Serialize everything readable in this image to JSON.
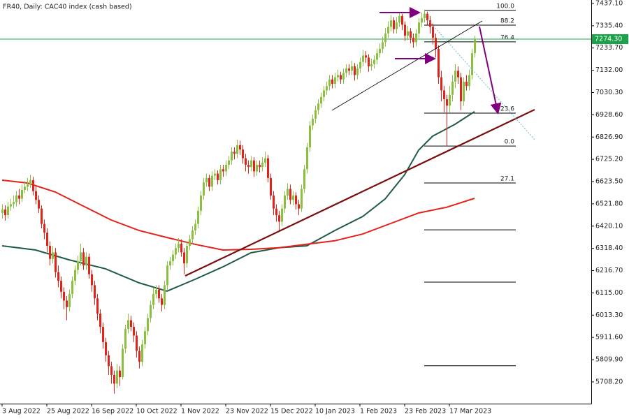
{
  "chart_data": {
    "type": "candlestick",
    "title": "FR40, Daily:  CAC40 index (cash based)",
    "up_color": "#8bbf3f",
    "down_color": "#e2231a",
    "xlim": [
      -0.75,
      210.75
    ],
    "ylim": [
      5609,
      7453
    ],
    "yticks": [
      {
        "value": 7437.1,
        "label": "7437.10"
      },
      {
        "value": 7335.4,
        "label": "7335.40"
      },
      {
        "value": 7233.7,
        "label": "7233.70"
      },
      {
        "value": 7132.0,
        "label": "7132.00"
      },
      {
        "value": 7030.3,
        "label": "7030.30"
      },
      {
        "value": 6928.6,
        "label": "6928.60"
      },
      {
        "value": 6826.9,
        "label": "6826.90"
      },
      {
        "value": 6725.2,
        "label": "6725.20"
      },
      {
        "value": 6623.5,
        "label": "6623.50"
      },
      {
        "value": 6521.8,
        "label": "6521.80"
      },
      {
        "value": 6420.1,
        "label": "6420.10"
      },
      {
        "value": 6318.4,
        "label": "6318.40"
      },
      {
        "value": 6216.7,
        "label": "6216.70"
      },
      {
        "value": 6115.0,
        "label": "6115.00"
      },
      {
        "value": 6013.3,
        "label": "6013.30"
      },
      {
        "value": 5911.6,
        "label": "5911.60"
      },
      {
        "value": 5809.9,
        "label": "5809.90"
      },
      {
        "value": 5708.2,
        "label": "5708.20"
      }
    ],
    "xticks": [
      {
        "value": 0,
        "label": "3 Aug 2022"
      },
      {
        "value": 16,
        "label": "25 Aug 2022"
      },
      {
        "value": 32,
        "label": "16 Sep 2022"
      },
      {
        "value": 48,
        "label": "10 Oct 2022"
      },
      {
        "value": 64,
        "label": "1 Nov 2022"
      },
      {
        "value": 80,
        "label": "23 Nov 2022"
      },
      {
        "value": 96,
        "label": "15 Dec 2022"
      },
      {
        "value": 112,
        "label": "10 Jan 2023"
      },
      {
        "value": 128,
        "label": "1 Feb 2023"
      },
      {
        "value": 144,
        "label": "23 Feb 2023"
      },
      {
        "value": 160,
        "label": "17 Mar 2023"
      }
    ],
    "last_price": {
      "value": 7274.3,
      "label": "7274.30",
      "color": "#1aa34a"
    },
    "candles": [
      [
        6480,
        6520,
        6455,
        6496
      ],
      [
        6496,
        6515,
        6445,
        6470
      ],
      [
        6470,
        6530,
        6455,
        6510
      ],
      [
        6510,
        6545,
        6490,
        6520
      ],
      [
        6520,
        6560,
        6500,
        6530
      ],
      [
        6530,
        6580,
        6510,
        6560
      ],
      [
        6560,
        6590,
        6520,
        6545
      ],
      [
        6545,
        6610,
        6530,
        6585
      ],
      [
        6585,
        6625,
        6570,
        6600
      ],
      [
        6600,
        6640,
        6580,
        6610
      ],
      [
        6610,
        6655,
        6595,
        6630
      ],
      [
        6630,
        6645,
        6560,
        6580
      ],
      [
        6580,
        6600,
        6520,
        6540
      ],
      [
        6540,
        6560,
        6480,
        6500
      ],
      [
        6500,
        6515,
        6410,
        6430
      ],
      [
        6430,
        6450,
        6360,
        6390
      ],
      [
        6390,
        6410,
        6300,
        6330
      ],
      [
        6330,
        6350,
        6240,
        6270
      ],
      [
        6270,
        6330,
        6250,
        6300
      ],
      [
        6300,
        6320,
        6185,
        6210
      ],
      [
        6210,
        6240,
        6140,
        6170
      ],
      [
        6170,
        6190,
        6090,
        6120
      ],
      [
        6120,
        6140,
        6040,
        6080
      ],
      [
        6080,
        6100,
        5990,
        6050
      ],
      [
        6050,
        6130,
        6030,
        6110
      ],
      [
        6110,
        6190,
        6090,
        6170
      ],
      [
        6170,
        6240,
        6150,
        6220
      ],
      [
        6220,
        6285,
        6200,
        6260
      ],
      [
        6260,
        6340,
        6240,
        6300
      ],
      [
        6300,
        6320,
        6220,
        6240
      ],
      [
        6240,
        6300,
        6220,
        6280
      ],
      [
        6280,
        6295,
        6180,
        6200
      ],
      [
        6200,
        6220,
        6120,
        6150
      ],
      [
        6150,
        6170,
        6060,
        6090
      ],
      [
        6090,
        6110,
        5990,
        6020
      ],
      [
        6020,
        6040,
        5930,
        5960
      ],
      [
        5960,
        5980,
        5860,
        5890
      ],
      [
        5890,
        5910,
        5800,
        5830
      ],
      [
        5830,
        5850,
        5740,
        5780
      ],
      [
        5780,
        5800,
        5700,
        5740
      ],
      [
        5740,
        5760,
        5655,
        5700
      ],
      [
        5700,
        5790,
        5680,
        5760
      ],
      [
        5760,
        5780,
        5690,
        5730
      ],
      [
        5730,
        5880,
        5720,
        5860
      ],
      [
        5860,
        5970,
        5840,
        5950
      ],
      [
        5950,
        6020,
        5930,
        5990
      ],
      [
        5990,
        6010,
        5940,
        5960
      ],
      [
        5960,
        5980,
        5890,
        5920
      ],
      [
        5920,
        5940,
        5820,
        5850
      ],
      [
        5850,
        5870,
        5770,
        5800
      ],
      [
        5800,
        5900,
        5780,
        5880
      ],
      [
        5880,
        5960,
        5860,
        5940
      ],
      [
        5940,
        6020,
        5920,
        6000
      ],
      [
        6000,
        6080,
        5980,
        6060
      ],
      [
        6060,
        6140,
        6040,
        6110
      ],
      [
        6110,
        6150,
        6090,
        6130
      ],
      [
        6130,
        6150,
        6070,
        6090
      ],
      [
        6090,
        6110,
        6030,
        6060
      ],
      [
        6060,
        6170,
        6040,
        6150
      ],
      [
        6150,
        6260,
        6130,
        6240
      ],
      [
        6240,
        6280,
        6220,
        6260
      ],
      [
        6260,
        6310,
        6240,
        6290
      ],
      [
        6290,
        6340,
        6270,
        6320
      ],
      [
        6320,
        6365,
        6300,
        6340
      ],
      [
        6340,
        6360,
        6280,
        6300
      ],
      [
        6300,
        6320,
        6200,
        6250
      ],
      [
        6250,
        6350,
        6230,
        6330
      ],
      [
        6330,
        6380,
        6310,
        6360
      ],
      [
        6360,
        6420,
        6340,
        6400
      ],
      [
        6400,
        6450,
        6380,
        6430
      ],
      [
        6430,
        6510,
        6410,
        6490
      ],
      [
        6490,
        6580,
        6470,
        6560
      ],
      [
        6560,
        6640,
        6540,
        6620
      ],
      [
        6620,
        6660,
        6600,
        6640
      ],
      [
        6640,
        6655,
        6580,
        6600
      ],
      [
        6600,
        6670,
        6580,
        6650
      ],
      [
        6650,
        6680,
        6630,
        6660
      ],
      [
        6660,
        6675,
        6610,
        6630
      ],
      [
        6630,
        6700,
        6610,
        6680
      ],
      [
        6680,
        6700,
        6645,
        6670
      ],
      [
        6670,
        6720,
        6650,
        6700
      ],
      [
        6700,
        6740,
        6680,
        6720
      ],
      [
        6720,
        6780,
        6700,
        6760
      ],
      [
        6760,
        6780,
        6725,
        6750
      ],
      [
        6750,
        6815,
        6730,
        6790
      ],
      [
        6790,
        6810,
        6745,
        6770
      ],
      [
        6770,
        6790,
        6705,
        6730
      ],
      [
        6730,
        6750,
        6670,
        6700
      ],
      [
        6700,
        6720,
        6660,
        6690
      ],
      [
        6690,
        6740,
        6670,
        6720
      ],
      [
        6720,
        6735,
        6645,
        6670
      ],
      [
        6670,
        6720,
        6650,
        6700
      ],
      [
        6700,
        6720,
        6665,
        6690
      ],
      [
        6690,
        6735,
        6670,
        6710
      ],
      [
        6710,
        6760,
        6690,
        6730
      ],
      [
        6730,
        6745,
        6620,
        6640
      ],
      [
        6640,
        6660,
        6540,
        6560
      ],
      [
        6560,
        6580,
        6470,
        6500
      ],
      [
        6500,
        6520,
        6440,
        6470
      ],
      [
        6470,
        6490,
        6400,
        6440
      ],
      [
        6440,
        6520,
        6420,
        6500
      ],
      [
        6500,
        6580,
        6480,
        6560
      ],
      [
        6560,
        6615,
        6540,
        6590
      ],
      [
        6590,
        6610,
        6520,
        6540
      ],
      [
        6540,
        6580,
        6515,
        6560
      ],
      [
        6560,
        6575,
        6495,
        6520
      ],
      [
        6520,
        6540,
        6470,
        6500
      ],
      [
        6500,
        6610,
        6485,
        6590
      ],
      [
        6590,
        6700,
        6570,
        6680
      ],
      [
        6680,
        6800,
        6660,
        6780
      ],
      [
        6780,
        6900,
        6760,
        6880
      ],
      [
        6880,
        6930,
        6860,
        6910
      ],
      [
        6910,
        6970,
        6890,
        6950
      ],
      [
        6950,
        7000,
        6930,
        6980
      ],
      [
        6980,
        7030,
        6960,
        7010
      ],
      [
        7010,
        7060,
        6990,
        7040
      ],
      [
        7040,
        7080,
        7020,
        7060
      ],
      [
        7060,
        7110,
        7040,
        7090
      ],
      [
        7090,
        7110,
        7050,
        7070
      ],
      [
        7070,
        7120,
        7050,
        7100
      ],
      [
        7100,
        7135,
        7080,
        7110
      ],
      [
        7110,
        7125,
        7070,
        7090
      ],
      [
        7090,
        7140,
        7070,
        7120
      ],
      [
        7120,
        7160,
        7100,
        7140
      ],
      [
        7140,
        7160,
        7110,
        7130
      ],
      [
        7130,
        7175,
        7110,
        7150
      ],
      [
        7150,
        7165,
        7085,
        7110
      ],
      [
        7110,
        7160,
        7090,
        7140
      ],
      [
        7140,
        7190,
        7120,
        7170
      ],
      [
        7170,
        7225,
        7150,
        7200
      ],
      [
        7200,
        7220,
        7165,
        7190
      ],
      [
        7190,
        7205,
        7125,
        7150
      ],
      [
        7150,
        7185,
        7130,
        7160
      ],
      [
        7160,
        7200,
        7140,
        7180
      ],
      [
        7180,
        7230,
        7160,
        7210
      ],
      [
        7210,
        7255,
        7190,
        7230
      ],
      [
        7230,
        7285,
        7210,
        7260
      ],
      [
        7260,
        7325,
        7240,
        7300
      ],
      [
        7300,
        7355,
        7280,
        7330
      ],
      [
        7330,
        7385,
        7310,
        7360
      ],
      [
        7360,
        7375,
        7300,
        7320
      ],
      [
        7320,
        7375,
        7300,
        7350
      ],
      [
        7350,
        7395,
        7330,
        7380
      ],
      [
        7380,
        7390,
        7315,
        7340
      ],
      [
        7340,
        7355,
        7265,
        7290
      ],
      [
        7290,
        7335,
        7270,
        7310
      ],
      [
        7310,
        7325,
        7255,
        7280
      ],
      [
        7280,
        7300,
        7235,
        7260
      ],
      [
        7260,
        7320,
        7240,
        7300
      ],
      [
        7300,
        7370,
        7280,
        7350
      ],
      [
        7350,
        7395,
        7330,
        7370
      ],
      [
        7370,
        7405,
        7350,
        7390
      ],
      [
        7390,
        7400,
        7335,
        7360
      ],
      [
        7360,
        7380,
        7300,
        7330
      ],
      [
        7330,
        7345,
        7250,
        7280
      ],
      [
        7280,
        7300,
        7190,
        7230
      ],
      [
        7230,
        7245,
        7070,
        7100
      ],
      [
        7100,
        7130,
        6990,
        7040
      ],
      [
        7040,
        7060,
        6940,
        7000
      ],
      [
        7000,
        7020,
        6786,
        6970
      ],
      [
        6970,
        7060,
        6940,
        7020
      ],
      [
        7020,
        7110,
        6990,
        7080
      ],
      [
        7080,
        7160,
        7050,
        7130
      ],
      [
        7130,
        7150,
        7070,
        7100
      ],
      [
        7100,
        7120,
        6950,
        6990
      ],
      [
        6990,
        7100,
        6970,
        7080
      ],
      [
        7080,
        7110,
        7040,
        7060
      ],
      [
        7060,
        7135,
        7040,
        7110
      ],
      [
        7110,
        7230,
        7090,
        7210
      ],
      [
        7210,
        7290,
        7190,
        7274.3
      ]
    ],
    "moving_averages": [
      {
        "color": "#1f5c47",
        "x": [
          0,
          12,
          24,
          37,
          49,
          59,
          69,
          79,
          89,
          99,
          109,
          119,
          129,
          137,
          144,
          149,
          154,
          162,
          169
        ],
        "values": [
          6330,
          6311,
          6266,
          6225,
          6161,
          6123,
          6177,
          6234,
          6298,
          6321,
          6330,
          6400,
          6464,
          6544,
          6655,
          6767,
          6831,
          6885,
          6943
        ]
      },
      {
        "color": "#e2231a",
        "x": [
          0,
          9,
          19,
          29,
          39,
          49,
          59,
          69,
          79,
          89,
          99,
          109,
          119,
          129,
          139,
          149,
          159,
          169
        ],
        "values": [
          6630,
          6617,
          6576,
          6512,
          6448,
          6400,
          6368,
          6337,
          6311,
          6314,
          6321,
          6337,
          6353,
          6384,
          6432,
          6480,
          6506,
          6547
        ]
      }
    ],
    "fib_levels": [
      {
        "value": 7405,
        "label": "100.0"
      },
      {
        "value": 7338,
        "label": "88.2"
      },
      {
        "value": 7262,
        "label": "76.4"
      },
      {
        "value": 6936,
        "label": "23.6"
      },
      {
        "value": 6786,
        "label": "0.0"
      },
      {
        "value": 6617,
        "label": "27.1"
      },
      {
        "value": 6403,
        "label": null
      },
      {
        "value": 6164,
        "label": null
      },
      {
        "value": 5782,
        "label": null
      }
    ]
  }
}
